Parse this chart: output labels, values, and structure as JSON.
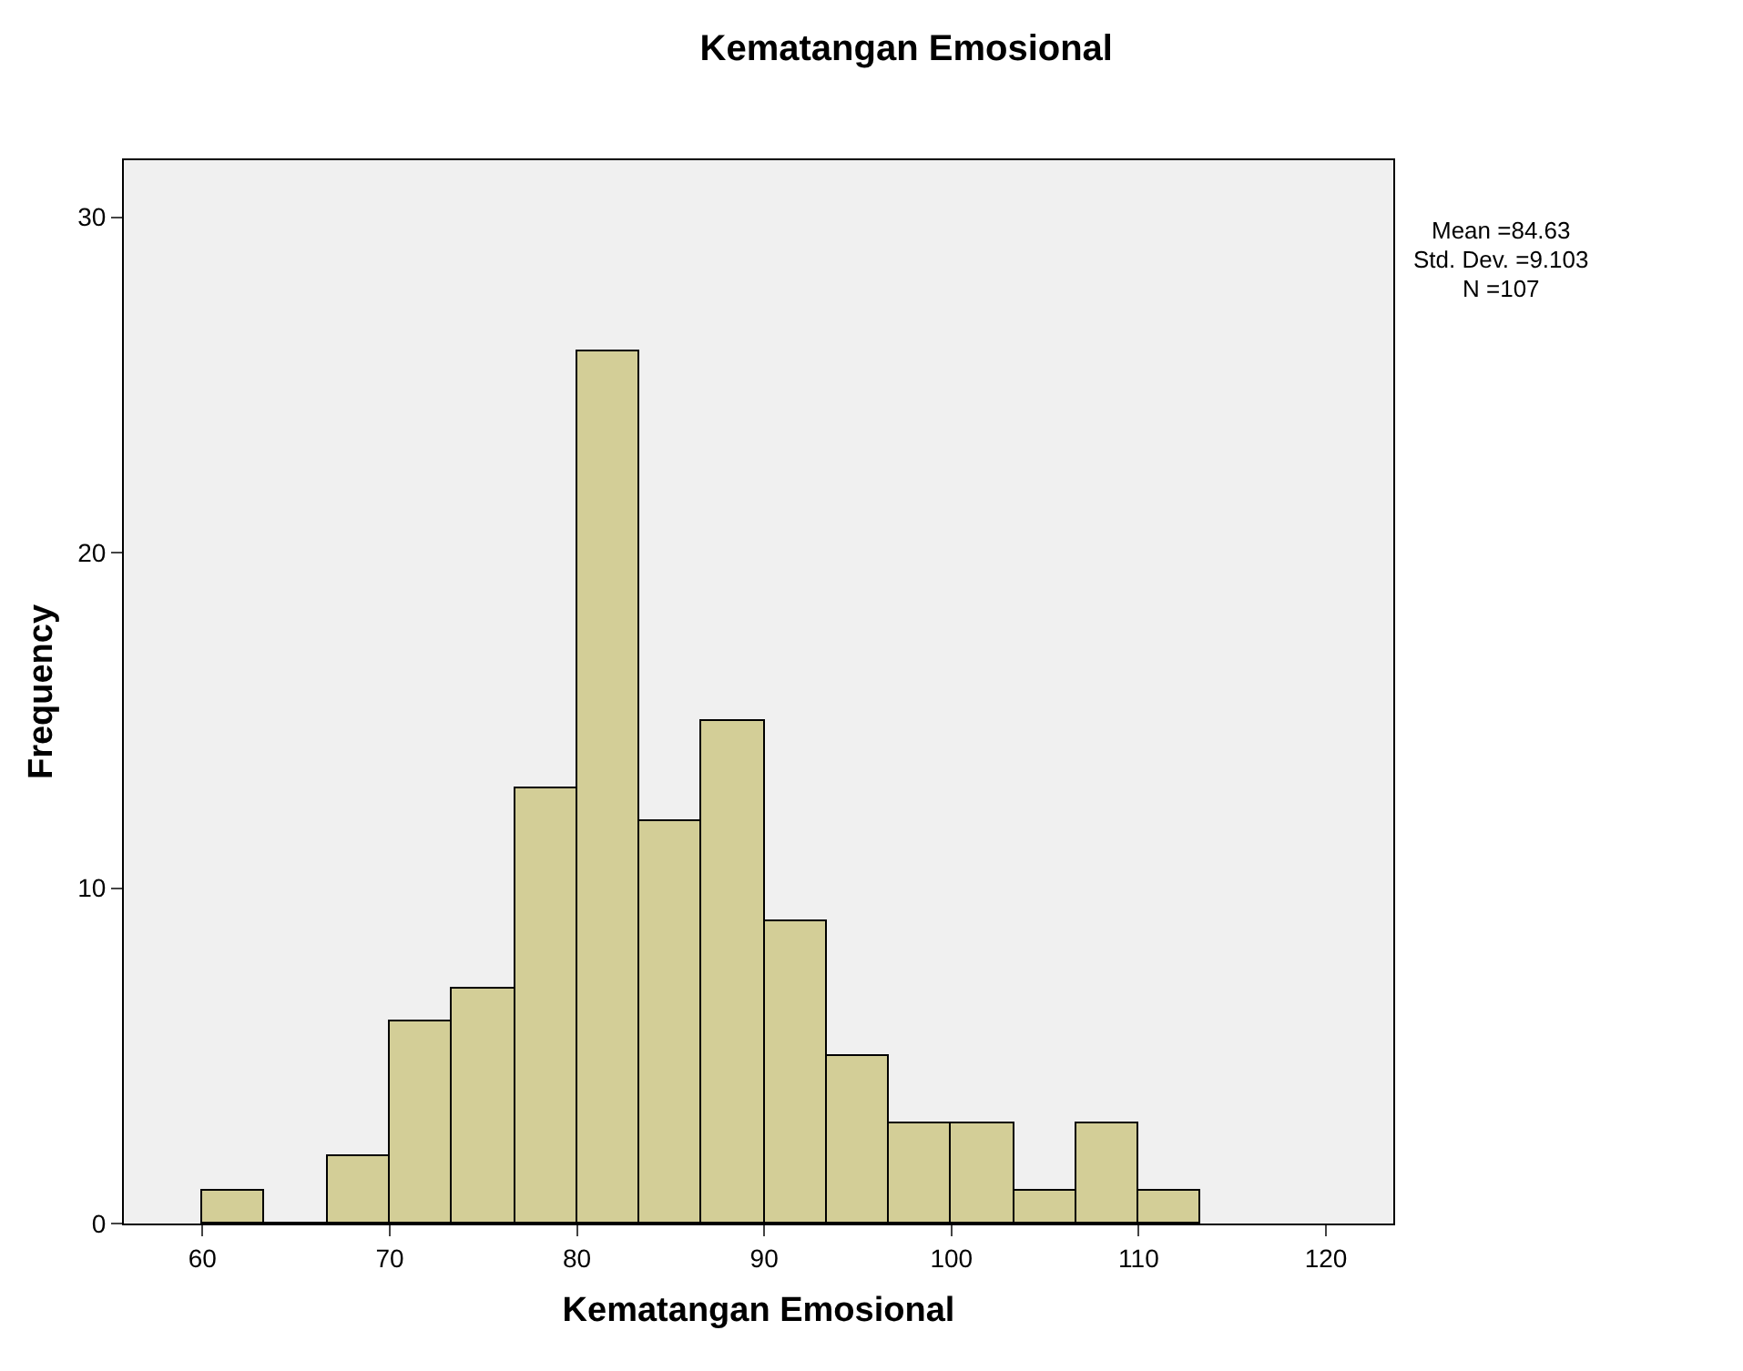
{
  "chart_data": {
    "type": "histogram",
    "title": "Kematangan Emosional",
    "xlabel": "Kematangan Emosional",
    "ylabel": "Frequency",
    "bins": [
      60,
      63.33,
      66.67,
      70,
      73.33,
      76.67,
      80,
      83.33,
      86.67,
      90,
      93.33,
      96.67,
      100,
      103.33,
      106.67,
      110,
      113.33
    ],
    "values": [
      1,
      0,
      2,
      6,
      7,
      13,
      26,
      12,
      15,
      9,
      5,
      3,
      3,
      1,
      3,
      1
    ],
    "color": "#d3ce97",
    "xlim": [
      55.8,
      123.6
    ],
    "xticks": [
      60,
      70,
      80,
      90,
      100,
      110,
      120
    ],
    "ylim": [
      0,
      31.7
    ],
    "yticks": [
      0,
      10,
      20,
      30
    ],
    "grid": false,
    "legend": false,
    "annotations": [
      "Mean =84.63",
      "Std. Dev. =9.103",
      "N =107"
    ]
  }
}
